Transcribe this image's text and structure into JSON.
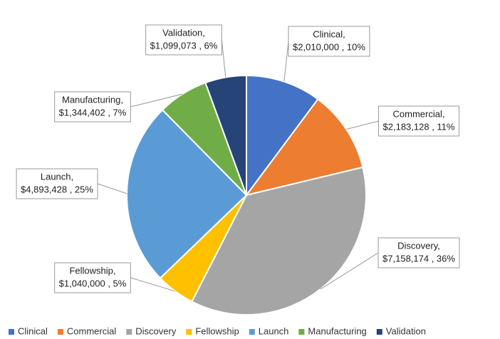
{
  "chart_data": {
    "type": "pie",
    "categories": [
      "Clinical",
      "Commercial",
      "Discovery",
      "Fellowship",
      "Launch",
      "Manufacturing",
      "Validation"
    ],
    "values": [
      2010000,
      2183128,
      7158174,
      1040000,
      4893428,
      1344402,
      1099073
    ],
    "callout_names": [
      "Clinical,",
      "Commercial,",
      "Discovery,",
      "Fellowship,",
      "Launch,",
      "Manufacturing,",
      "Validation,"
    ],
    "value_labels": [
      "$2,010,000 , 10%",
      "$2,183,128 , 11%",
      "$7,158,174 , 36%",
      "$1,040,000 , 5%",
      "$4,893,428 , 25%",
      "$1,344,402 , 7%",
      "$1,099,073 , 6%"
    ],
    "colors": [
      "#4472c4",
      "#ed7d31",
      "#a5a5a5",
      "#ffc000",
      "#5b9bd5",
      "#70ad47",
      "#264478"
    ],
    "legend": "bottom"
  }
}
